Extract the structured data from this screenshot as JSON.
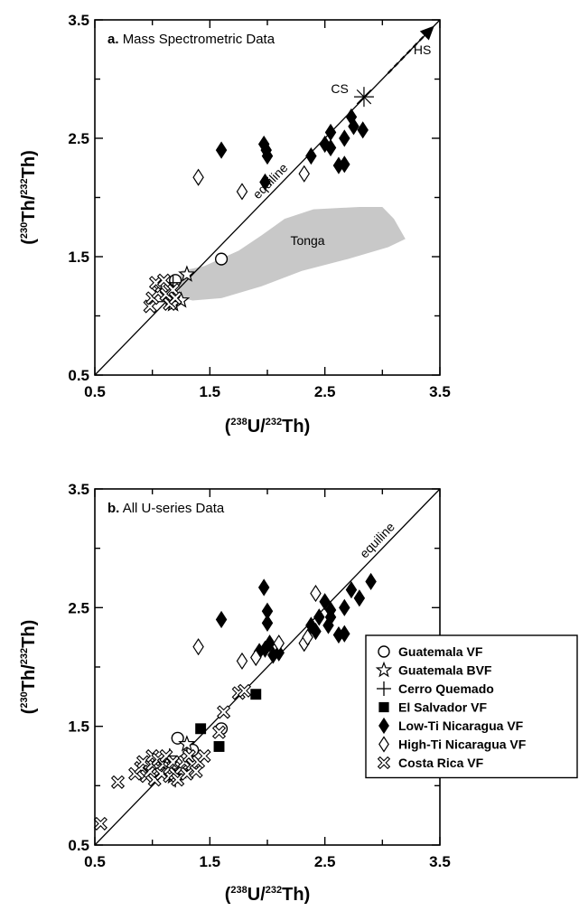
{
  "chart_data": [
    {
      "type": "scatter",
      "panel": "a",
      "title_bold": "a.",
      "title_rest": "Mass Spectrometric Data",
      "xlabel": "(238U/232Th)",
      "ylabel": "(230Th/232Th)",
      "xlim": [
        0.5,
        3.5
      ],
      "ylim": [
        0.5,
        3.5
      ],
      "x_ticks": [
        "0.5",
        "1.5",
        "2.5",
        "3.5"
      ],
      "y_ticks": [
        "0.5",
        "1.5",
        "2.5",
        "3.5"
      ],
      "equiline_label": "equiline",
      "region_label": "Tonga",
      "region_outline": [
        [
          1.25,
          1.38
        ],
        [
          1.45,
          1.42
        ],
        [
          1.75,
          1.55
        ],
        [
          1.95,
          1.68
        ],
        [
          2.15,
          1.82
        ],
        [
          2.4,
          1.9
        ],
        [
          2.8,
          1.92
        ],
        [
          3.0,
          1.92
        ],
        [
          3.1,
          1.82
        ],
        [
          3.2,
          1.65
        ],
        [
          3.05,
          1.58
        ],
        [
          2.7,
          1.48
        ],
        [
          2.3,
          1.38
        ],
        [
          1.95,
          1.25
        ],
        [
          1.6,
          1.15
        ],
        [
          1.35,
          1.13
        ],
        [
          1.22,
          1.16
        ]
      ],
      "annotations": [
        {
          "label": "CS",
          "x": 2.82,
          "y": 2.85
        },
        {
          "label": "HS",
          "x": 3.35,
          "y": 3.3
        }
      ],
      "series": [
        {
          "name": "Guatemala VF",
          "marker": "circle-open",
          "x": [
            1.2,
            1.6
          ],
          "y": [
            1.3,
            1.48
          ]
        },
        {
          "name": "Guatemala BVF",
          "marker": "star-open",
          "x": [
            1.3,
            1.25,
            1.18
          ],
          "y": [
            1.35,
            1.13,
            1.1
          ]
        },
        {
          "name": "Cerro Quemado",
          "marker": "cross",
          "x": [
            1.18,
            1.12
          ],
          "y": [
            1.28,
            1.12
          ]
        },
        {
          "name": "Low-Ti Nicaragua VF",
          "marker": "diamond-filled",
          "x": [
            1.6,
            1.97,
            1.99,
            2.0,
            1.98,
            2.38,
            2.5,
            2.55,
            2.55,
            2.67,
            2.73,
            2.75,
            2.83,
            2.67,
            2.62
          ],
          "y": [
            2.4,
            2.45,
            2.4,
            2.35,
            2.13,
            2.35,
            2.45,
            2.42,
            2.55,
            2.5,
            2.68,
            2.6,
            2.57,
            2.28,
            2.27
          ]
        },
        {
          "name": "High-Ti Nicaragua VF",
          "marker": "diamond-open",
          "x": [
            1.4,
            1.78,
            2.32
          ],
          "y": [
            2.17,
            2.05,
            2.2
          ]
        },
        {
          "name": "Costa Rica VF",
          "marker": "x-open",
          "x": [
            0.98,
            1.0,
            1.05,
            1.08,
            1.12,
            1.15,
            1.18,
            1.2,
            1.03,
            1.1
          ],
          "y": [
            1.08,
            1.15,
            1.2,
            1.25,
            1.18,
            1.1,
            1.22,
            1.15,
            1.28,
            1.3
          ]
        },
        {
          "name": "CS",
          "marker": "asterisk",
          "x": [
            2.84
          ],
          "y": [
            2.85
          ]
        }
      ]
    },
    {
      "type": "scatter",
      "panel": "b",
      "title_bold": "b.",
      "title_rest": "All U-series Data",
      "xlabel": "(238U/232Th)",
      "ylabel": "(230Th/232Th)",
      "xlim": [
        0.5,
        3.5
      ],
      "ylim": [
        0.5,
        3.5
      ],
      "x_ticks": [
        "0.5",
        "1.5",
        "2.5",
        "3.5"
      ],
      "y_ticks": [
        "0.5",
        "1.5",
        "2.5",
        "3.5"
      ],
      "equiline_label": "equiline",
      "legend": [
        {
          "label": "Guatemala VF",
          "marker": "circle-open"
        },
        {
          "label": "Guatemala BVF",
          "marker": "star-open"
        },
        {
          "label": "Cerro Quemado",
          "marker": "cross"
        },
        {
          "label": "El Salvador VF",
          "marker": "square-filled"
        },
        {
          "label": "Low-Ti Nicaragua VF",
          "marker": "diamond-filled"
        },
        {
          "label": "High-Ti Nicaragua VF",
          "marker": "diamond-open"
        },
        {
          "label": "Costa Rica VF",
          "marker": "x-open"
        }
      ],
      "series": [
        {
          "name": "Guatemala VF",
          "marker": "circle-open",
          "x": [
            1.22,
            1.6,
            1.35
          ],
          "y": [
            1.4,
            1.48,
            1.3
          ]
        },
        {
          "name": "Guatemala BVF",
          "marker": "star-open",
          "x": [
            1.3,
            1.25,
            1.18
          ],
          "y": [
            1.35,
            1.12,
            1.08
          ]
        },
        {
          "name": "Cerro Quemado",
          "marker": "cross",
          "x": [
            1.15,
            1.1,
            1.2
          ],
          "y": [
            1.25,
            1.15,
            1.05
          ]
        },
        {
          "name": "El Salvador VF",
          "marker": "square-filled",
          "x": [
            1.42,
            1.58,
            1.9
          ],
          "y": [
            1.48,
            1.33,
            1.77
          ]
        },
        {
          "name": "Low-Ti Nicaragua VF",
          "marker": "diamond-filled",
          "x": [
            1.6,
            1.97,
            2.0,
            2.0,
            1.98,
            1.93,
            2.02,
            2.05,
            2.1,
            2.38,
            2.45,
            2.5,
            2.55,
            2.55,
            2.53,
            2.67,
            2.73,
            2.8,
            2.9,
            2.67,
            2.62,
            2.42
          ],
          "y": [
            2.4,
            2.67,
            2.47,
            2.37,
            2.15,
            2.13,
            2.2,
            2.1,
            2.12,
            2.35,
            2.42,
            2.55,
            2.42,
            2.48,
            2.35,
            2.5,
            2.65,
            2.58,
            2.72,
            2.28,
            2.27,
            2.3
          ]
        },
        {
          "name": "High-Ti Nicaragua VF",
          "marker": "diamond-open",
          "x": [
            1.4,
            1.78,
            1.9,
            2.1,
            2.32,
            2.35,
            2.42
          ],
          "y": [
            2.17,
            2.05,
            2.08,
            2.2,
            2.2,
            2.25,
            2.62
          ]
        },
        {
          "name": "Costa Rica VF",
          "marker": "x-open",
          "x": [
            0.55,
            0.7,
            0.85,
            0.9,
            0.92,
            0.95,
            0.98,
            1.0,
            1.0,
            1.02,
            1.05,
            1.05,
            1.08,
            1.1,
            1.12,
            1.15,
            1.15,
            1.18,
            1.2,
            1.22,
            1.25,
            1.28,
            1.3,
            1.32,
            1.35,
            1.38,
            1.4,
            1.45,
            1.58,
            1.62,
            1.75,
            1.8
          ],
          "y": [
            0.68,
            1.03,
            1.1,
            1.15,
            1.2,
            1.08,
            1.12,
            1.18,
            1.25,
            1.05,
            1.15,
            1.22,
            1.1,
            1.18,
            1.25,
            1.08,
            1.15,
            1.2,
            1.1,
            1.05,
            1.15,
            1.2,
            1.1,
            1.25,
            1.18,
            1.12,
            1.2,
            1.25,
            1.45,
            1.62,
            1.78,
            1.8
          ]
        }
      ]
    }
  ]
}
